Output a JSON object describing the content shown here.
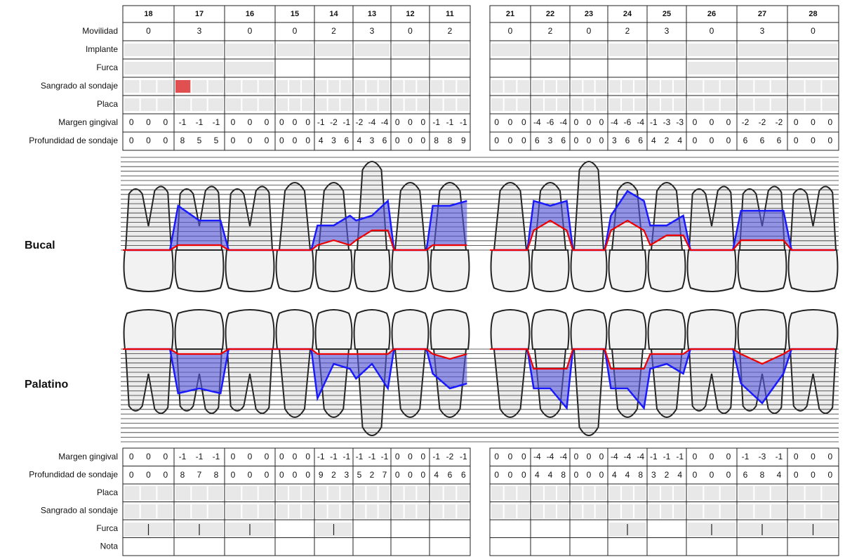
{
  "labels_top": [
    "Movilidad",
    "Implante",
    "Furca",
    "Sangrado al sondaje",
    "Placa",
    "Margen gingival",
    "Profundidad de sondaje"
  ],
  "labels_bottom": [
    "Margen gingival",
    "Profundidad de sondaje",
    "Placa",
    "Sangrado al sondaje",
    "Furca",
    "Nota"
  ],
  "sides": [
    "Bucal",
    "Palatino"
  ],
  "teeth": [
    {
      "number": 18,
      "movilidad": 0,
      "furca_bucal": true,
      "furca_palatino": true,
      "sangrado_bucal": [
        false,
        false,
        false
      ],
      "margen_bucal": [
        0,
        0,
        0
      ],
      "prof_bucal": [
        0,
        0,
        0
      ],
      "margen_palatino": [
        0,
        0,
        0
      ],
      "prof_palatino": [
        0,
        0,
        0
      ]
    },
    {
      "number": 17,
      "movilidad": 3,
      "furca_bucal": true,
      "furca_palatino": true,
      "sangrado_bucal": [
        true,
        false,
        false
      ],
      "margen_bucal": [
        -1,
        -1,
        -1
      ],
      "prof_bucal": [
        8,
        5,
        5
      ],
      "margen_palatino": [
        -1,
        -1,
        -1
      ],
      "prof_palatino": [
        8,
        7,
        8
      ]
    },
    {
      "number": 16,
      "movilidad": 0,
      "furca_bucal": true,
      "furca_palatino": true,
      "sangrado_bucal": [
        false,
        false,
        false
      ],
      "margen_bucal": [
        0,
        0,
        0
      ],
      "prof_bucal": [
        0,
        0,
        0
      ],
      "margen_palatino": [
        0,
        0,
        0
      ],
      "prof_palatino": [
        0,
        0,
        0
      ]
    },
    {
      "number": 15,
      "movilidad": 0,
      "furca_bucal": false,
      "furca_palatino": false,
      "sangrado_bucal": [
        false,
        false,
        false
      ],
      "margen_bucal": [
        0,
        0,
        0
      ],
      "prof_bucal": [
        0,
        0,
        0
      ],
      "margen_palatino": [
        0,
        0,
        0
      ],
      "prof_palatino": [
        0,
        0,
        0
      ]
    },
    {
      "number": 14,
      "movilidad": 2,
      "furca_bucal": false,
      "furca_palatino": true,
      "sangrado_bucal": [
        false,
        false,
        false
      ],
      "margen_bucal": [
        -1,
        -2,
        -1
      ],
      "prof_bucal": [
        4,
        3,
        6
      ],
      "margen_palatino": [
        -1,
        -1,
        -1
      ],
      "prof_palatino": [
        9,
        2,
        3
      ]
    },
    {
      "number": 13,
      "movilidad": 3,
      "furca_bucal": false,
      "furca_palatino": false,
      "sangrado_bucal": [
        false,
        false,
        false
      ],
      "margen_bucal": [
        -2,
        -4,
        -4
      ],
      "prof_bucal": [
        4,
        3,
        6
      ],
      "margen_palatino": [
        -1,
        -1,
        -1
      ],
      "prof_palatino": [
        5,
        2,
        7
      ]
    },
    {
      "number": 12,
      "movilidad": 0,
      "furca_bucal": false,
      "furca_palatino": false,
      "sangrado_bucal": [
        false,
        false,
        false
      ],
      "margen_bucal": [
        0,
        0,
        0
      ],
      "prof_bucal": [
        0,
        0,
        0
      ],
      "margen_palatino": [
        0,
        0,
        0
      ],
      "prof_palatino": [
        0,
        0,
        0
      ]
    },
    {
      "number": 11,
      "movilidad": 2,
      "furca_bucal": false,
      "furca_palatino": false,
      "sangrado_bucal": [
        false,
        false,
        false
      ],
      "margen_bucal": [
        -1,
        -1,
        -1
      ],
      "prof_bucal": [
        8,
        8,
        9
      ],
      "margen_palatino": [
        -1,
        -2,
        -1
      ],
      "prof_palatino": [
        4,
        6,
        6
      ]
    },
    {
      "number": 21,
      "movilidad": 0,
      "furca_bucal": false,
      "furca_palatino": false,
      "sangrado_bucal": [
        false,
        false,
        false
      ],
      "margen_bucal": [
        0,
        0,
        0
      ],
      "prof_bucal": [
        0,
        0,
        0
      ],
      "margen_palatino": [
        0,
        0,
        0
      ],
      "prof_palatino": [
        0,
        0,
        0
      ]
    },
    {
      "number": 22,
      "movilidad": 2,
      "furca_bucal": false,
      "furca_palatino": false,
      "sangrado_bucal": [
        false,
        false,
        false
      ],
      "margen_bucal": [
        -4,
        -6,
        -4
      ],
      "prof_bucal": [
        6,
        3,
        6
      ],
      "margen_palatino": [
        -4,
        -4,
        -4
      ],
      "prof_palatino": [
        4,
        4,
        8
      ]
    },
    {
      "number": 23,
      "movilidad": 0,
      "furca_bucal": false,
      "furca_palatino": false,
      "sangrado_bucal": [
        false,
        false,
        false
      ],
      "margen_bucal": [
        0,
        0,
        0
      ],
      "prof_bucal": [
        0,
        0,
        0
      ],
      "margen_palatino": [
        0,
        0,
        0
      ],
      "prof_palatino": [
        0,
        0,
        0
      ]
    },
    {
      "number": 24,
      "movilidad": 2,
      "furca_bucal": false,
      "furca_palatino": true,
      "sangrado_bucal": [
        false,
        false,
        false
      ],
      "margen_bucal": [
        -4,
        -6,
        -4
      ],
      "prof_bucal": [
        3,
        6,
        6
      ],
      "margen_palatino": [
        -4,
        -4,
        -4
      ],
      "prof_palatino": [
        4,
        4,
        8
      ]
    },
    {
      "number": 25,
      "movilidad": 3,
      "furca_bucal": false,
      "furca_palatino": false,
      "sangrado_bucal": [
        false,
        false,
        false
      ],
      "margen_bucal": [
        -1,
        -3,
        -3
      ],
      "prof_bucal": [
        4,
        2,
        4
      ],
      "margen_palatino": [
        -1,
        -1,
        -1
      ],
      "prof_palatino": [
        3,
        2,
        4
      ]
    },
    {
      "number": 26,
      "movilidad": 0,
      "furca_bucal": true,
      "furca_palatino": true,
      "sangrado_bucal": [
        false,
        false,
        false
      ],
      "margen_bucal": [
        0,
        0,
        0
      ],
      "prof_bucal": [
        0,
        0,
        0
      ],
      "margen_palatino": [
        0,
        0,
        0
      ],
      "prof_palatino": [
        0,
        0,
        0
      ]
    },
    {
      "number": 27,
      "movilidad": 3,
      "furca_bucal": true,
      "furca_palatino": true,
      "sangrado_bucal": [
        false,
        false,
        false
      ],
      "margen_bucal": [
        -2,
        -2,
        -2
      ],
      "prof_bucal": [
        6,
        6,
        6
      ],
      "margen_palatino": [
        -1,
        -3,
        -1
      ],
      "prof_palatino": [
        6,
        8,
        4
      ]
    },
    {
      "number": 28,
      "movilidad": 0,
      "furca_bucal": true,
      "furca_palatino": true,
      "sangrado_bucal": [
        false,
        false,
        false
      ],
      "margen_bucal": [
        0,
        0,
        0
      ],
      "prof_bucal": [
        0,
        0,
        0
      ],
      "margen_palatino": [
        0,
        0,
        0
      ],
      "prof_palatino": [
        0,
        0,
        0
      ]
    }
  ]
}
